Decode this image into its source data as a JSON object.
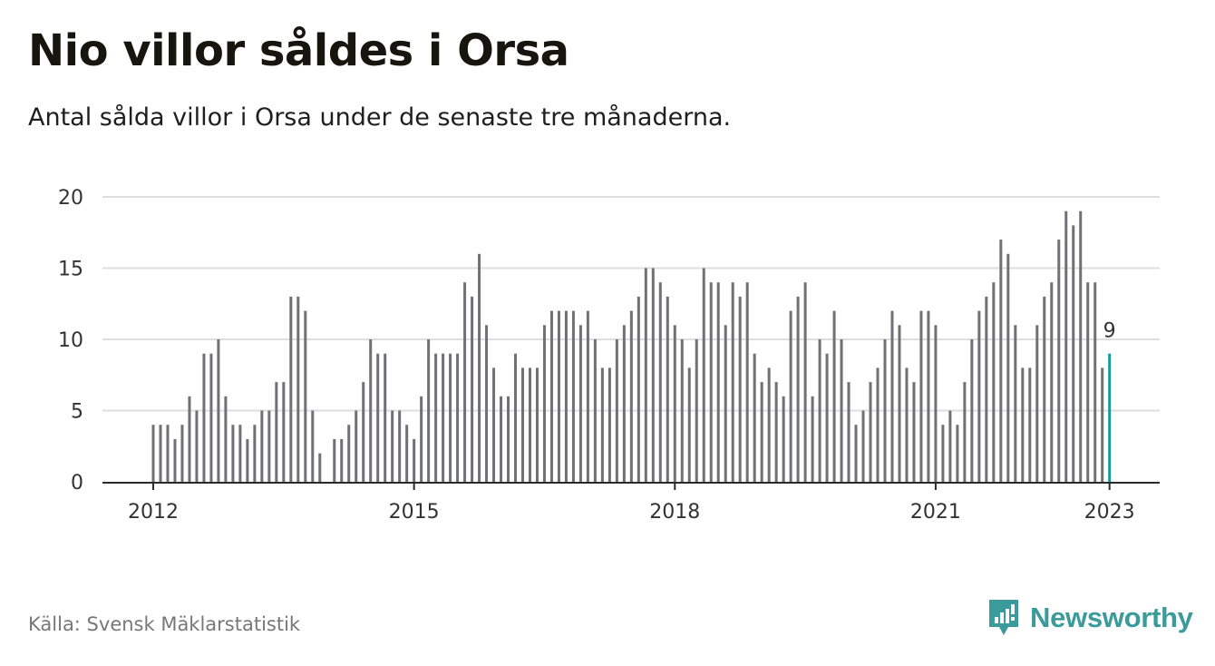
{
  "title": "Nio villor såldes i Orsa",
  "subtitle": "Antal sålda villor i Orsa under de senaste tre månaderna.",
  "source": "Källa: Svensk Mäklarstatistik",
  "brand": {
    "name": "Newsworthy",
    "icon": "newsworthy-logo-icon",
    "color": "#3b9a9a"
  },
  "chart_data": {
    "type": "bar",
    "title": "Nio villor såldes i Orsa",
    "subtitle": "Antal sålda villor i Orsa under de senaste tre månaderna.",
    "x_start": "2012-01",
    "x_end": "2023-01",
    "x_ticks": [
      "2012",
      "2015",
      "2018",
      "2021",
      "2023"
    ],
    "y_ticks": [
      0,
      5,
      10,
      15,
      20
    ],
    "ylim": [
      0,
      20
    ],
    "grid": true,
    "bar_color": "#707075",
    "highlight_color": "#1a9a96",
    "annotation": {
      "x": "2023-01",
      "text": "9"
    },
    "values": [
      4,
      4,
      4,
      3,
      4,
      6,
      5,
      9,
      9,
      10,
      6,
      4,
      4,
      3,
      4,
      5,
      5,
      7,
      7,
      13,
      13,
      12,
      5,
      2,
      null,
      3,
      3,
      4,
      5,
      7,
      10,
      9,
      9,
      5,
      5,
      4,
      3,
      6,
      10,
      9,
      9,
      9,
      9,
      14,
      13,
      16,
      11,
      8,
      6,
      6,
      9,
      8,
      8,
      8,
      11,
      12,
      12,
      12,
      12,
      11,
      12,
      10,
      8,
      8,
      10,
      11,
      12,
      13,
      15,
      15,
      14,
      13,
      11,
      10,
      8,
      10,
      15,
      14,
      14,
      11,
      14,
      13,
      14,
      9,
      7,
      8,
      7,
      6,
      12,
      13,
      14,
      6,
      10,
      9,
      12,
      10,
      7,
      4,
      5,
      7,
      8,
      10,
      12,
      11,
      8,
      7,
      12,
      12,
      11,
      4,
      5,
      4,
      7,
      10,
      12,
      13,
      14,
      17,
      16,
      11,
      8,
      8,
      11,
      13,
      14,
      17,
      19,
      18,
      19,
      14,
      14,
      8,
      9
    ]
  }
}
